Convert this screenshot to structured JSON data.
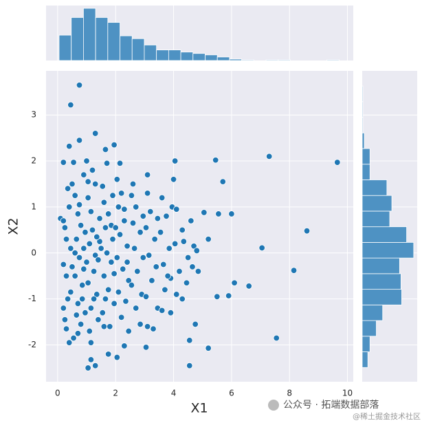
{
  "chart_data": [
    {
      "type": "scatter",
      "xlabel": "X1",
      "ylabel": "X2",
      "color": "#1f77b4",
      "grid": true,
      "xlim": [
        -0.4,
        10.2
      ],
      "ylim": [
        -2.8,
        3.96
      ],
      "xticks": [
        0,
        2,
        4,
        6,
        8,
        10
      ],
      "yticks": [
        -2,
        -1,
        0,
        1,
        2,
        3
      ],
      "x": [
        0.75,
        0.45,
        1.3,
        0.75,
        0.4,
        1.65,
        9.65,
        7.3,
        5.45,
        5.7,
        8.6,
        7.05,
        8.15,
        7.55,
        6.1,
        6.6,
        5.5,
        5.9,
        4.55,
        4.55,
        5.2,
        1.05,
        1.3,
        1.15,
        2.05,
        0.4,
        3.05,
        2.3,
        6.0,
        5.55,
        5.05,
        4.0,
        4.05,
        3.1,
        2.15,
        1.0,
        0.2,
        0.55,
        1.95,
        4.75,
        3.9,
        4.3,
        5.2,
        4.85,
        4.7,
        0.1,
        0.2,
        0.25,
        0.3,
        0.2,
        0.3,
        0.2,
        0.25,
        0.35,
        0.4,
        0.35,
        0.5,
        0.45,
        0.5,
        0.45,
        0.3,
        0.6,
        0.7,
        0.8,
        0.65,
        0.9,
        0.75,
        0.6,
        0.85,
        0.7,
        0.95,
        0.8,
        0.55,
        0.9,
        0.6,
        0.95,
        0.9,
        0.65,
        0.75,
        0.85,
        0.7,
        1.05,
        1.15,
        1.2,
        1.1,
        1.3,
        1.25,
        1.05,
        1.35,
        1.15,
        1.4,
        1.1,
        1.45,
        1.3,
        1.2,
        1.45,
        1.0,
        1.4,
        1.25,
        1.05,
        1.35,
        1.15,
        1.55,
        1.6,
        1.75,
        1.65,
        1.9,
        1.7,
        1.85,
        1.6,
        1.75,
        1.95,
        1.55,
        1.8,
        1.7,
        1.9,
        1.5,
        1.95,
        1.65,
        1.85,
        1.6,
        1.75,
        2.05,
        2.2,
        2.1,
        2.3,
        2.15,
        2.4,
        2.05,
        2.25,
        2.45,
        2.1,
        2.35,
        2.2,
        2.45,
        2.3,
        2.0,
        2.4,
        2.55,
        2.7,
        2.6,
        2.85,
        2.65,
        2.95,
        2.75,
        2.55,
        2.9,
        2.7,
        2.85,
        2.6,
        2.95,
        3.1,
        3.2,
        3.05,
        3.35,
        3.15,
        3.4,
        3.25,
        3.05,
        3.45,
        3.3,
        3.1,
        3.45,
        3.6,
        3.75,
        3.55,
        3.85,
        3.65,
        3.9,
        3.7,
        3.6,
        3.95,
        3.8,
        4.1,
        4.3,
        4.05,
        4.5,
        4.2,
        4.45,
        4.1,
        4.6,
        4.8,
        4.35,
        4.65
      ],
      "values": [
        3.65,
        3.22,
        2.6,
        2.45,
        2.32,
        2.25,
        1.97,
        2.1,
        2.02,
        1.55,
        0.48,
        0.11,
        -0.38,
        -1.85,
        -0.65,
        -0.72,
        -0.95,
        -0.93,
        -2.45,
        -1.9,
        -2.07,
        -2.5,
        -2.45,
        -2.32,
        -2.27,
        -1.95,
        -2.05,
        -2.02,
        0.85,
        0.85,
        0.88,
        1.6,
        2.0,
        1.7,
        1.95,
        2.0,
        1.97,
        1.97,
        2.35,
        -1.55,
        -1.3,
        -1.0,
        0.3,
        -0.4,
        0.15,
        0.75,
        0.7,
        0.55,
        0.3,
        -0.25,
        -0.5,
        -1.2,
        -1.45,
        -1.0,
        1.0,
        1.4,
        1.5,
        0.1,
        -0.3,
        -0.85,
        -1.65,
        1.25,
        0.85,
        0.6,
        0.3,
        0.1,
        -0.1,
        -0.5,
        -0.7,
        -1.1,
        -1.3,
        -1.55,
        -1.85,
        1.7,
        0.0,
        0.45,
        -0.35,
        -1.35,
        1.05,
        -1.0,
        -1.75,
        1.2,
        0.9,
        0.5,
        0.2,
        -0.05,
        -0.4,
        -0.65,
        -0.9,
        -1.2,
        -1.45,
        -1.7,
        0.75,
        1.5,
        1.8,
        0.25,
        -0.2,
        -0.15,
        -1.0,
        1.55,
        0.35,
        -1.95,
        1.45,
        1.1,
        0.85,
        0.55,
        0.3,
        0.0,
        -0.2,
        -0.5,
        -0.8,
        -1.1,
        -1.3,
        -1.6,
        1.95,
        1.25,
        0.1,
        -0.45,
        -1.0,
        0.6,
        -1.6,
        -2.2,
        1.6,
        1.3,
        1.0,
        0.7,
        0.4,
        0.15,
        -0.1,
        -0.35,
        -0.6,
        -0.85,
        -1.05,
        -1.4,
        -1.7,
        0.95,
        0.55,
        -0.2,
        1.25,
        1.0,
        0.65,
        0.45,
        0.1,
        -0.1,
        -0.4,
        -0.7,
        -0.9,
        -1.2,
        -1.55,
        1.5,
        0.8,
        1.3,
        0.9,
        0.55,
        0.3,
        -0.05,
        -0.3,
        -0.6,
        -0.95,
        -1.2,
        -1.65,
        -1.6,
        0.75,
        1.2,
        0.8,
        0.45,
        0.1,
        -0.25,
        -0.55,
        -0.8,
        -1.25,
        1.0,
        -0.5,
        0.95,
        0.5,
        0.2,
        -0.1,
        -0.4,
        -0.65,
        -0.9,
        0.7,
        0.05,
        0.25,
        -0.3
      ]
    },
    {
      "type": "histogram",
      "color": "#4e92c3",
      "ylim": [
        0,
        78
      ],
      "bins": [
        0.05,
        0.47,
        0.89,
        1.31,
        1.73,
        2.15,
        2.57,
        2.99,
        3.41,
        3.83,
        4.25,
        4.67,
        5.09,
        5.51,
        5.93,
        6.35,
        6.77,
        7.19,
        7.61,
        8.03,
        8.45,
        8.87,
        9.29,
        9.71
      ],
      "values": [
        36,
        61,
        74,
        61,
        54,
        35,
        31,
        22,
        15,
        15,
        12,
        10,
        8,
        5,
        2,
        1,
        0,
        1,
        1,
        0,
        0,
        0,
        1
      ]
    },
    {
      "type": "histogram-horizontal",
      "color": "#4e92c3",
      "xlim": [
        0,
        78
      ],
      "bins": [
        -2.49,
        -2.15,
        -1.81,
        -1.47,
        -1.13,
        -0.79,
        -0.45,
        -0.11,
        0.23,
        0.57,
        0.91,
        1.25,
        1.59,
        1.93,
        2.27,
        2.61,
        2.95,
        3.29,
        3.63
      ],
      "values": [
        8,
        11,
        20,
        29,
        56,
        55,
        53,
        73,
        63,
        39,
        42,
        35,
        11,
        11,
        3,
        1,
        1,
        1
      ]
    }
  ],
  "watermark": {
    "line1": "公众号 · 拓端数据部落",
    "line2": "@稀土掘金技术社区"
  }
}
